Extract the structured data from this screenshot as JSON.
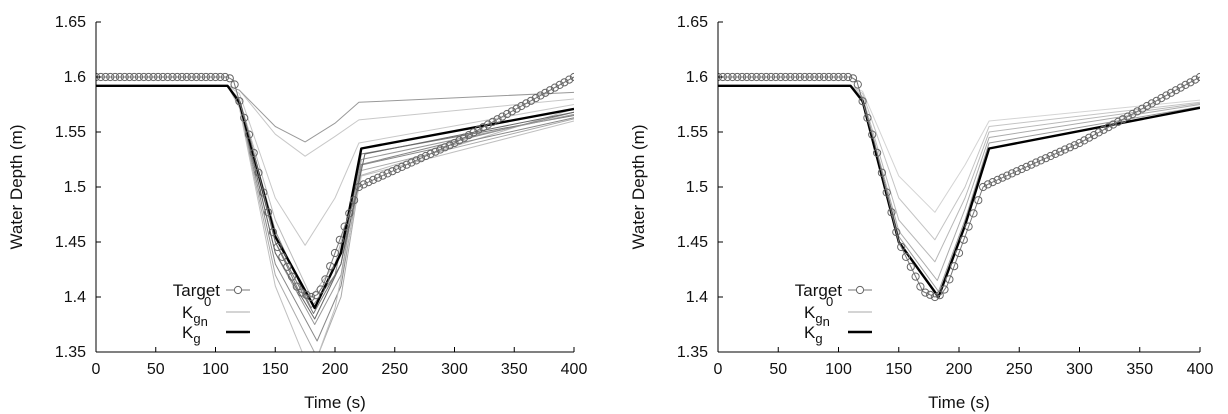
{
  "chart_data": [
    {
      "type": "line",
      "xlabel": "Time (s)",
      "ylabel": "Water Depth (m)",
      "xlim": [
        0,
        400
      ],
      "ylim": [
        1.35,
        1.65
      ],
      "xticks": [
        "0",
        "50",
        "100",
        "150",
        "200",
        "250",
        "300",
        "350",
        "400"
      ],
      "yticks": [
        "1.35",
        "1.4",
        "1.45",
        "1.5",
        "1.55",
        "1.6",
        "1.65"
      ],
      "legend_position": "bottom-left",
      "legend": [
        {
          "base": "Target",
          "sub": "",
          "sup": "",
          "style": "target"
        },
        {
          "base": "K",
          "sub": "g",
          "sub2": "n",
          "sup": "0",
          "style": "ensemble"
        },
        {
          "base": "K",
          "sub": "g",
          "sub2": "",
          "sup": "",
          "style": "final"
        }
      ],
      "series": [
        {
          "name": "Target",
          "style": "target",
          "x": [
            0,
            110,
            115,
            130,
            150,
            170,
            180,
            185,
            190,
            210,
            220,
            225,
            300,
            400
          ],
          "y": [
            1.6,
            1.6,
            1.597,
            1.54,
            1.45,
            1.405,
            1.4,
            1.402,
            1.41,
            1.47,
            1.5,
            1.503,
            1.54,
            1.6
          ]
        },
        {
          "style": "ensemble",
          "color": "#c8c8c8",
          "x": [
            0,
            110,
            120,
            150,
            175,
            200,
            220,
            400
          ],
          "y": [
            1.592,
            1.592,
            1.588,
            1.548,
            1.528,
            1.546,
            1.561,
            1.58
          ]
        },
        {
          "style": "ensemble",
          "color": "#999999",
          "x": [
            0,
            110,
            120,
            150,
            175,
            200,
            220,
            400
          ],
          "y": [
            1.592,
            1.592,
            1.588,
            1.555,
            1.541,
            1.558,
            1.577,
            1.586
          ]
        },
        {
          "style": "ensemble",
          "color": "#c8c8c8",
          "x": [
            0,
            110,
            120,
            150,
            175,
            200,
            220,
            400
          ],
          "y": [
            1.592,
            1.592,
            1.585,
            1.49,
            1.447,
            1.49,
            1.54,
            1.575
          ]
        },
        {
          "style": "ensemble",
          "color": "#bbbbbb",
          "x": [
            0,
            110,
            120,
            150,
            180,
            200,
            220,
            400
          ],
          "y": [
            1.592,
            1.592,
            1.58,
            1.47,
            1.4,
            1.43,
            1.51,
            1.571
          ]
        },
        {
          "style": "ensemble",
          "color": "#8a8a8a",
          "x": [
            0,
            110,
            120,
            150,
            180,
            200,
            220,
            400
          ],
          "y": [
            1.592,
            1.592,
            1.578,
            1.46,
            1.39,
            1.42,
            1.52,
            1.568
          ]
        },
        {
          "style": "ensemble",
          "color": "#777777",
          "x": [
            0,
            110,
            120,
            150,
            182,
            205,
            222,
            400
          ],
          "y": [
            1.592,
            1.592,
            1.576,
            1.45,
            1.385,
            1.43,
            1.53,
            1.565
          ]
        },
        {
          "style": "ensemble",
          "color": "#999999",
          "x": [
            0,
            110,
            120,
            150,
            183,
            205,
            222,
            400
          ],
          "y": [
            1.592,
            1.592,
            1.575,
            1.44,
            1.375,
            1.42,
            1.525,
            1.566
          ]
        },
        {
          "style": "ensemble",
          "color": "#888888",
          "x": [
            0,
            110,
            120,
            150,
            185,
            205,
            222,
            400
          ],
          "y": [
            1.592,
            1.592,
            1.574,
            1.43,
            1.36,
            1.41,
            1.52,
            1.563
          ]
        },
        {
          "style": "ensemble",
          "color": "#aaaaaa",
          "x": [
            0,
            110,
            120,
            150,
            185,
            205,
            222,
            400
          ],
          "y": [
            1.592,
            1.592,
            1.573,
            1.42,
            1.345,
            1.4,
            1.515,
            1.562
          ]
        },
        {
          "style": "ensemble",
          "color": "#c0c0c0",
          "x": [
            0,
            110,
            120,
            150,
            180,
            200,
            222,
            400
          ],
          "y": [
            1.592,
            1.592,
            1.572,
            1.41,
            1.33,
            1.39,
            1.51,
            1.56
          ]
        },
        {
          "style": "ensemble",
          "color": "#666666",
          "x": [
            0,
            110,
            120,
            150,
            183,
            205,
            225,
            400
          ],
          "y": [
            1.592,
            1.592,
            1.576,
            1.44,
            1.38,
            1.43,
            1.53,
            1.568
          ]
        },
        {
          "style": "final",
          "x": [
            0,
            110,
            120,
            150,
            183,
            205,
            222,
            400
          ],
          "y": [
            1.592,
            1.592,
            1.577,
            1.455,
            1.39,
            1.44,
            1.535,
            1.571
          ]
        }
      ]
    },
    {
      "type": "line",
      "xlabel": "Time (s)",
      "ylabel": "Water Depth (m)",
      "xlim": [
        0,
        400
      ],
      "ylim": [
        1.35,
        1.65
      ],
      "xticks": [
        "0",
        "50",
        "100",
        "150",
        "200",
        "250",
        "300",
        "350",
        "400"
      ],
      "yticks": [
        "1.35",
        "1.4",
        "1.45",
        "1.5",
        "1.55",
        "1.6",
        "1.65"
      ],
      "legend_position": "bottom-left",
      "legend": [
        {
          "base": "Target",
          "sub": "",
          "sup": "",
          "style": "target"
        },
        {
          "base": "K",
          "sub": "g",
          "sub2": "n",
          "sup": "0",
          "style": "ensemble"
        },
        {
          "base": "K",
          "sub": "g",
          "sub2": "",
          "sup": "",
          "style": "final"
        }
      ],
      "series": [
        {
          "name": "Target",
          "style": "target",
          "x": [
            0,
            110,
            115,
            130,
            150,
            170,
            180,
            185,
            190,
            210,
            220,
            225,
            300,
            400
          ],
          "y": [
            1.6,
            1.6,
            1.597,
            1.54,
            1.45,
            1.405,
            1.4,
            1.402,
            1.41,
            1.47,
            1.5,
            1.503,
            1.54,
            1.6
          ]
        },
        {
          "style": "ensemble",
          "color": "#d4d4d4",
          "x": [
            0,
            110,
            120,
            150,
            180,
            205,
            225,
            400
          ],
          "y": [
            1.592,
            1.592,
            1.587,
            1.51,
            1.477,
            1.52,
            1.56,
            1.579
          ]
        },
        {
          "style": "ensemble",
          "color": "#c4c4c4",
          "x": [
            0,
            110,
            120,
            150,
            180,
            205,
            225,
            400
          ],
          "y": [
            1.592,
            1.592,
            1.585,
            1.49,
            1.452,
            1.5,
            1.555,
            1.577
          ]
        },
        {
          "style": "ensemble",
          "color": "#b8b8b8",
          "x": [
            0,
            110,
            120,
            150,
            180,
            205,
            225,
            400
          ],
          "y": [
            1.592,
            1.592,
            1.582,
            1.47,
            1.432,
            1.49,
            1.55,
            1.576
          ]
        },
        {
          "style": "ensemble",
          "color": "#aaaaaa",
          "x": [
            0,
            110,
            120,
            150,
            182,
            205,
            225,
            400
          ],
          "y": [
            1.592,
            1.592,
            1.58,
            1.46,
            1.415,
            1.48,
            1.545,
            1.575
          ]
        },
        {
          "style": "ensemble",
          "color": "#999999",
          "x": [
            0,
            110,
            120,
            150,
            183,
            205,
            225,
            400
          ],
          "y": [
            1.592,
            1.592,
            1.579,
            1.455,
            1.405,
            1.47,
            1.54,
            1.573
          ]
        },
        {
          "style": "final",
          "x": [
            0,
            110,
            120,
            150,
            183,
            205,
            225,
            400
          ],
          "y": [
            1.592,
            1.592,
            1.578,
            1.45,
            1.4,
            1.465,
            1.535,
            1.572
          ]
        }
      ]
    }
  ]
}
